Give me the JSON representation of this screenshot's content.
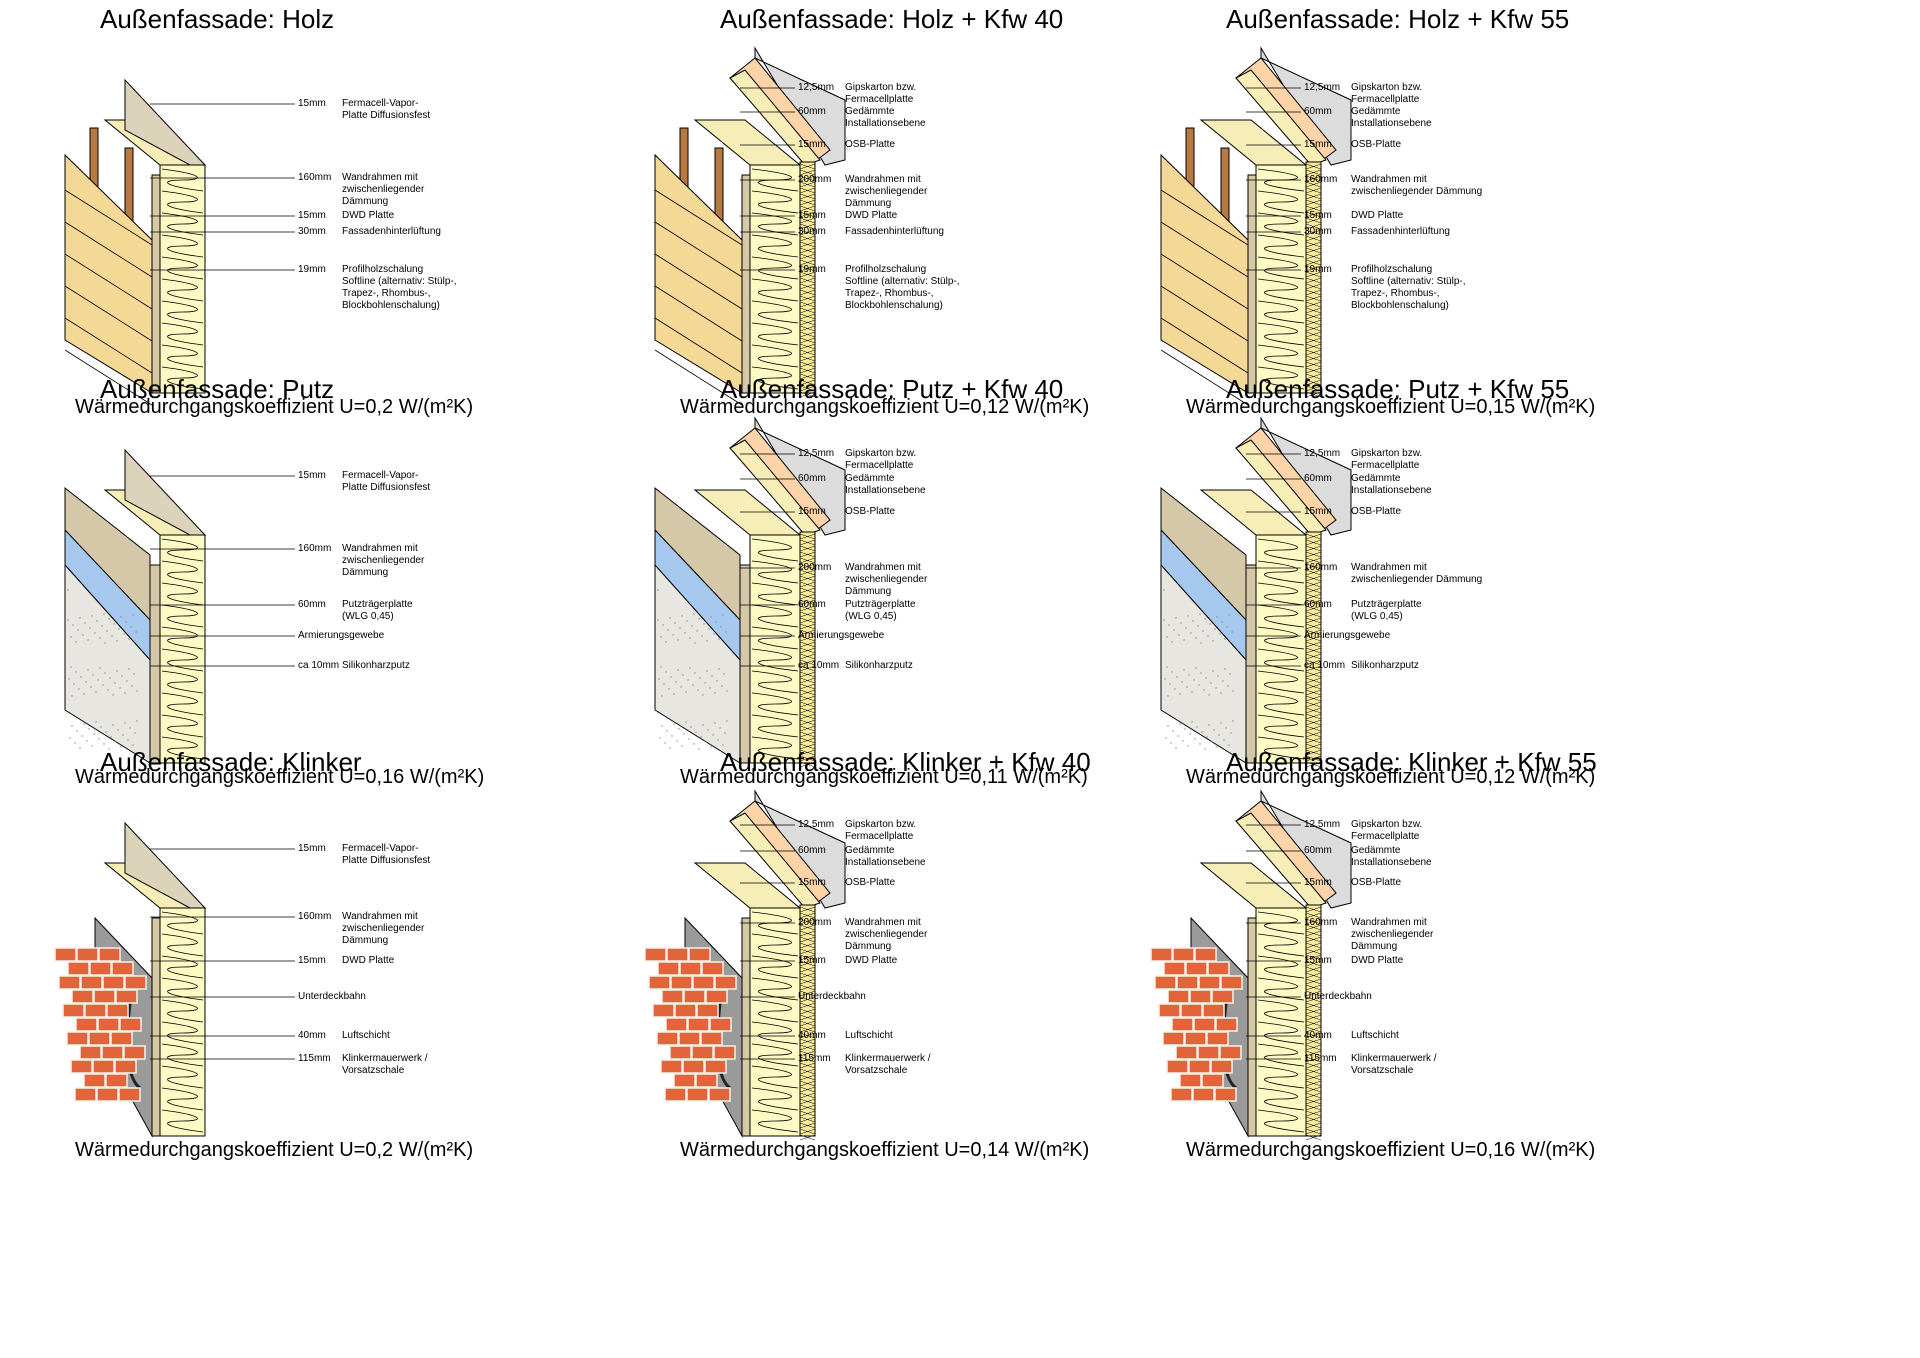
{
  "panels": [
    {
      "id": "holz",
      "title": "Außenfassade: Holz",
      "u_value": "Wärmedurchgangskoeffizient U=0,2 W/(m²K)",
      "kind": "holz",
      "kfw": false,
      "layers": [
        {
          "thickness": "15mm",
          "label": "Fermacell-Vapor-\nPlatte Diffusionsfest"
        },
        {
          "thickness": "160mm",
          "label": "Wandrahmen mit\nzwischenliegender\nDämmung"
        },
        {
          "thickness": "15mm",
          "label": "DWD Platte"
        },
        {
          "thickness": "30mm",
          "label": "Fassadenhinterlüftung"
        },
        {
          "thickness": "19mm",
          "label": "Profilholzschalung\nSoftline (alternativ: Stülp-,\nTrapez-, Rhombus-,\nBlockbohlenschalung)"
        }
      ]
    },
    {
      "id": "holz40",
      "title": "Außenfassade: Holz + Kfw 40",
      "u_value": "Wärmedurchgangskoeffizient U=0,12 W/(m²K)",
      "kind": "holz",
      "kfw": true,
      "layers": [
        {
          "thickness": "12,5mm",
          "label": "Gipskarton bzw.\nFermacellplatte"
        },
        {
          "thickness": "60mm",
          "label": "Gedämmte\nInstallationsebene"
        },
        {
          "thickness": "15mm",
          "label": "OSB-Platte"
        },
        {
          "thickness": "200mm",
          "label": "Wandrahmen mit\nzwischenliegender\nDämmung"
        },
        {
          "thickness": "15mm",
          "label": "DWD Platte"
        },
        {
          "thickness": "30mm",
          "label": "Fassadenhinterlüftung"
        },
        {
          "thickness": "19mm",
          "label": "Profilholzschalung\nSoftline (alternativ: Stülp-,\nTrapez-, Rhombus-,\nBlockbohlenschalung)"
        }
      ]
    },
    {
      "id": "holz55",
      "title": "Außenfassade: Holz + Kfw 55",
      "u_value": "Wärmedurchgangskoeffizient U=0,15 W/(m²K)",
      "kind": "holz",
      "kfw": true,
      "layers": [
        {
          "thickness": "12,5mm",
          "label": "Gipskarton bzw.\nFermacellplatte"
        },
        {
          "thickness": "60mm",
          "label": "Gedämmte\nInstallationsebene"
        },
        {
          "thickness": "15mm",
          "label": "OSB-Platte"
        },
        {
          "thickness": "160mm",
          "label": "Wandrahmen mit\nzwischenliegender Dämmung"
        },
        {
          "thickness": "15mm",
          "label": "DWD Platte"
        },
        {
          "thickness": "30mm",
          "label": "Fassadenhinterlüftung"
        },
        {
          "thickness": "19mm",
          "label": "Profilholzschalung\nSoftline (alternativ: Stülp-,\nTrapez-, Rhombus-,\nBlockbohlenschalung)"
        }
      ]
    },
    {
      "id": "putz",
      "title": "Außenfassade: Putz",
      "u_value": "Wärmedurchgangskoeffizient U=0,16 W/(m²K)",
      "kind": "putz",
      "kfw": false,
      "layers": [
        {
          "thickness": "15mm",
          "label": "Fermacell-Vapor-\nPlatte Diffusionsfest"
        },
        {
          "thickness": "160mm",
          "label": "Wandrahmen mit\nzwischenliegender\nDämmung"
        },
        {
          "thickness": "60mm",
          "label": "Putzträgerplatte\n(WLG 0,45)"
        },
        {
          "thickness": "",
          "label": "Armierungsgewebe"
        },
        {
          "thickness": "ca 10mm",
          "label": "Silikonharzputz"
        }
      ]
    },
    {
      "id": "putz40",
      "title": "Außenfassade: Putz + Kfw 40",
      "u_value": "Wärmedurchgangskoeffizient U=0,11 W/(m²K)",
      "kind": "putz",
      "kfw": true,
      "layers": [
        {
          "thickness": "12,5mm",
          "label": "Gipskarton bzw.\nFermacellplatte"
        },
        {
          "thickness": "60mm",
          "label": "Gedämmte\nInstallationsebene"
        },
        {
          "thickness": "15mm",
          "label": "OSB-Platte"
        },
        {
          "thickness": "200mm",
          "label": "Wandrahmen mit\nzwischenliegender\nDämmung"
        },
        {
          "thickness": "60mm",
          "label": "Putzträgerplatte\n(WLG 0,45)"
        },
        {
          "thickness": "",
          "label": "Armierungsgewebe"
        },
        {
          "thickness": "ca 10mm",
          "label": "Silikonharzputz"
        }
      ]
    },
    {
      "id": "putz55",
      "title": "Außenfassade: Putz + Kfw 55",
      "u_value": "Wärmedurchgangskoeffizient U=0,12 W/(m²K)",
      "kind": "putz",
      "kfw": true,
      "layers": [
        {
          "thickness": "12,5mm",
          "label": "Gipskarton bzw.\nFermacellplatte"
        },
        {
          "thickness": "60mm",
          "label": "Gedämmte\nInstallationsebene"
        },
        {
          "thickness": "15mm",
          "label": "OSB-Platte"
        },
        {
          "thickness": "160mm",
          "label": "Wandrahmen mit\nzwischenliegender Dämmung"
        },
        {
          "thickness": "60mm",
          "label": "Putzträgerplatte\n(WLG 0,45)"
        },
        {
          "thickness": "",
          "label": "Armierungsgewebe"
        },
        {
          "thickness": "ca 10mm",
          "label": "Silikonharzputz"
        }
      ]
    },
    {
      "id": "klinker",
      "title": "Außenfassade: Klinker",
      "u_value": "Wärmedurchgangskoeffizient U=0,2 W/(m²K)",
      "kind": "klinker",
      "kfw": false,
      "layers": [
        {
          "thickness": "15mm",
          "label": "Fermacell-Vapor-\nPlatte Diffusionsfest"
        },
        {
          "thickness": "160mm",
          "label": "Wandrahmen mit\nzwischenliegender\nDämmung"
        },
        {
          "thickness": "15mm",
          "label": "DWD Platte"
        },
        {
          "thickness": "",
          "label": "Unterdeckbahn"
        },
        {
          "thickness": "40mm",
          "label": "Luftschicht"
        },
        {
          "thickness": "115mm",
          "label": "Klinkermauerwerk /\nVorsatzschale"
        }
      ]
    },
    {
      "id": "klinker40",
      "title": "Außenfassade: Klinker + Kfw 40",
      "u_value": "Wärmedurchgangskoeffizient U=0,14 W/(m²K)",
      "kind": "klinker",
      "kfw": true,
      "layers": [
        {
          "thickness": "12,5mm",
          "label": "Gipskarton bzw.\nFermacellplatte"
        },
        {
          "thickness": "60mm",
          "label": "Gedämmte\nInstallationsebene"
        },
        {
          "thickness": "15mm",
          "label": "OSB-Platte"
        },
        {
          "thickness": "200mm",
          "label": "Wandrahmen mit\nzwischenliegender\nDämmung"
        },
        {
          "thickness": "15mm",
          "label": "DWD Platte"
        },
        {
          "thickness": "",
          "label": "Unterdeckbahn"
        },
        {
          "thickness": "40mm",
          "label": "Luftschicht"
        },
        {
          "thickness": "115mm",
          "label": "Klinkermauerwerk /\nVorsatzschale"
        }
      ]
    },
    {
      "id": "klinker55",
      "title": "Außenfassade: Klinker + Kfw 55",
      "u_value": "Wärmedurchgangskoeffizient U=0,16 W/(m²K)",
      "kind": "klinker",
      "kfw": true,
      "layers": [
        {
          "thickness": "12,5mm",
          "label": "Gipskarton bzw.\nFermacellplatte"
        },
        {
          "thickness": "60mm",
          "label": "Gedämmte\nInstallationsebene"
        },
        {
          "thickness": "15mm",
          "label": "OSB-Platte"
        },
        {
          "thickness": "160mm",
          "label": "Wandrahmen mit\nzwischenliegender\nDämmung"
        },
        {
          "thickness": "15mm",
          "label": "DWD Platte"
        },
        {
          "thickness": "",
          "label": "Unterdeckbahn"
        },
        {
          "thickness": "40mm",
          "label": "Luftschicht"
        },
        {
          "thickness": "115mm",
          "label": "Klinkermauerwerk /\nVorsatzschale"
        }
      ]
    }
  ],
  "colors": {
    "insulation": "#fdfac4",
    "frame_face": "#f6eeb6",
    "gypsum": "#dcdcdc",
    "installation": "#fcd4a8",
    "osb": "#f7ea9a",
    "dwd": "#d6c9a6",
    "fermacell": "#dcd3bb",
    "cladding": "#f3d896",
    "batten": "#b87a40",
    "putz_board": "#d4c8a8",
    "mesh": "#a6c8ee",
    "render": "#e8e6e0",
    "brick": "#e2643a",
    "mortar": "#f4f1ea",
    "membrane": "#9a9a9a",
    "line": "#000000"
  }
}
